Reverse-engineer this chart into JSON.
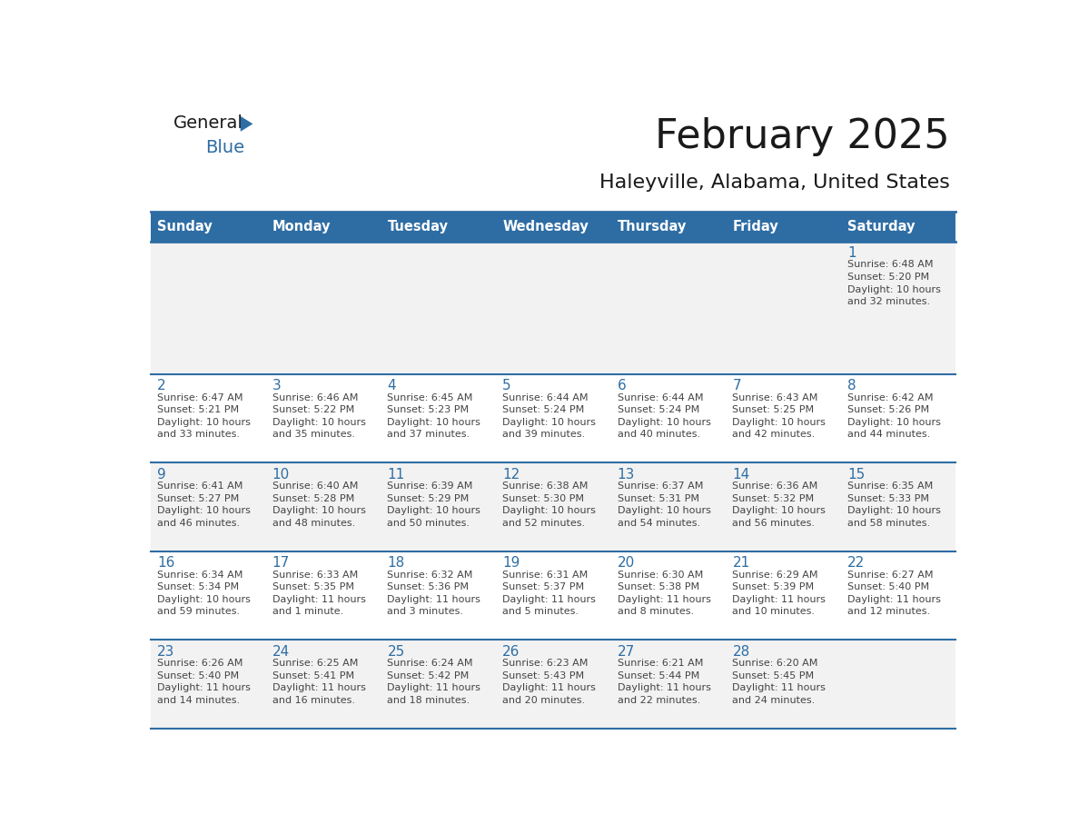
{
  "title": "February 2025",
  "subtitle": "Haleyville, Alabama, United States",
  "header_color": "#2e6da4",
  "header_text_color": "#ffffff",
  "cell_bg_1": "#f2f2f2",
  "cell_bg_2": "#ffffff",
  "day_headers": [
    "Sunday",
    "Monday",
    "Tuesday",
    "Wednesday",
    "Thursday",
    "Friday",
    "Saturday"
  ],
  "title_color": "#1a1a1a",
  "subtitle_color": "#1a1a1a",
  "number_color": "#2e6da4",
  "text_color": "#444444",
  "line_color": "#2e6da4",
  "logo_general_color": "#1a1a1a",
  "logo_blue_color": "#2e6da4",
  "logo_triangle_color": "#2e6da4",
  "calendar_data": [
    [
      {
        "day": null,
        "info": null
      },
      {
        "day": null,
        "info": null
      },
      {
        "day": null,
        "info": null
      },
      {
        "day": null,
        "info": null
      },
      {
        "day": null,
        "info": null
      },
      {
        "day": null,
        "info": null
      },
      {
        "day": 1,
        "info": "Sunrise: 6:48 AM\nSunset: 5:20 PM\nDaylight: 10 hours\nand 32 minutes."
      }
    ],
    [
      {
        "day": 2,
        "info": "Sunrise: 6:47 AM\nSunset: 5:21 PM\nDaylight: 10 hours\nand 33 minutes."
      },
      {
        "day": 3,
        "info": "Sunrise: 6:46 AM\nSunset: 5:22 PM\nDaylight: 10 hours\nand 35 minutes."
      },
      {
        "day": 4,
        "info": "Sunrise: 6:45 AM\nSunset: 5:23 PM\nDaylight: 10 hours\nand 37 minutes."
      },
      {
        "day": 5,
        "info": "Sunrise: 6:44 AM\nSunset: 5:24 PM\nDaylight: 10 hours\nand 39 minutes."
      },
      {
        "day": 6,
        "info": "Sunrise: 6:44 AM\nSunset: 5:24 PM\nDaylight: 10 hours\nand 40 minutes."
      },
      {
        "day": 7,
        "info": "Sunrise: 6:43 AM\nSunset: 5:25 PM\nDaylight: 10 hours\nand 42 minutes."
      },
      {
        "day": 8,
        "info": "Sunrise: 6:42 AM\nSunset: 5:26 PM\nDaylight: 10 hours\nand 44 minutes."
      }
    ],
    [
      {
        "day": 9,
        "info": "Sunrise: 6:41 AM\nSunset: 5:27 PM\nDaylight: 10 hours\nand 46 minutes."
      },
      {
        "day": 10,
        "info": "Sunrise: 6:40 AM\nSunset: 5:28 PM\nDaylight: 10 hours\nand 48 minutes."
      },
      {
        "day": 11,
        "info": "Sunrise: 6:39 AM\nSunset: 5:29 PM\nDaylight: 10 hours\nand 50 minutes."
      },
      {
        "day": 12,
        "info": "Sunrise: 6:38 AM\nSunset: 5:30 PM\nDaylight: 10 hours\nand 52 minutes."
      },
      {
        "day": 13,
        "info": "Sunrise: 6:37 AM\nSunset: 5:31 PM\nDaylight: 10 hours\nand 54 minutes."
      },
      {
        "day": 14,
        "info": "Sunrise: 6:36 AM\nSunset: 5:32 PM\nDaylight: 10 hours\nand 56 minutes."
      },
      {
        "day": 15,
        "info": "Sunrise: 6:35 AM\nSunset: 5:33 PM\nDaylight: 10 hours\nand 58 minutes."
      }
    ],
    [
      {
        "day": 16,
        "info": "Sunrise: 6:34 AM\nSunset: 5:34 PM\nDaylight: 10 hours\nand 59 minutes."
      },
      {
        "day": 17,
        "info": "Sunrise: 6:33 AM\nSunset: 5:35 PM\nDaylight: 11 hours\nand 1 minute."
      },
      {
        "day": 18,
        "info": "Sunrise: 6:32 AM\nSunset: 5:36 PM\nDaylight: 11 hours\nand 3 minutes."
      },
      {
        "day": 19,
        "info": "Sunrise: 6:31 AM\nSunset: 5:37 PM\nDaylight: 11 hours\nand 5 minutes."
      },
      {
        "day": 20,
        "info": "Sunrise: 6:30 AM\nSunset: 5:38 PM\nDaylight: 11 hours\nand 8 minutes."
      },
      {
        "day": 21,
        "info": "Sunrise: 6:29 AM\nSunset: 5:39 PM\nDaylight: 11 hours\nand 10 minutes."
      },
      {
        "day": 22,
        "info": "Sunrise: 6:27 AM\nSunset: 5:40 PM\nDaylight: 11 hours\nand 12 minutes."
      }
    ],
    [
      {
        "day": 23,
        "info": "Sunrise: 6:26 AM\nSunset: 5:40 PM\nDaylight: 11 hours\nand 14 minutes."
      },
      {
        "day": 24,
        "info": "Sunrise: 6:25 AM\nSunset: 5:41 PM\nDaylight: 11 hours\nand 16 minutes."
      },
      {
        "day": 25,
        "info": "Sunrise: 6:24 AM\nSunset: 5:42 PM\nDaylight: 11 hours\nand 18 minutes."
      },
      {
        "day": 26,
        "info": "Sunrise: 6:23 AM\nSunset: 5:43 PM\nDaylight: 11 hours\nand 20 minutes."
      },
      {
        "day": 27,
        "info": "Sunrise: 6:21 AM\nSunset: 5:44 PM\nDaylight: 11 hours\nand 22 minutes."
      },
      {
        "day": 28,
        "info": "Sunrise: 6:20 AM\nSunset: 5:45 PM\nDaylight: 11 hours\nand 24 minutes."
      },
      {
        "day": null,
        "info": null
      }
    ]
  ]
}
